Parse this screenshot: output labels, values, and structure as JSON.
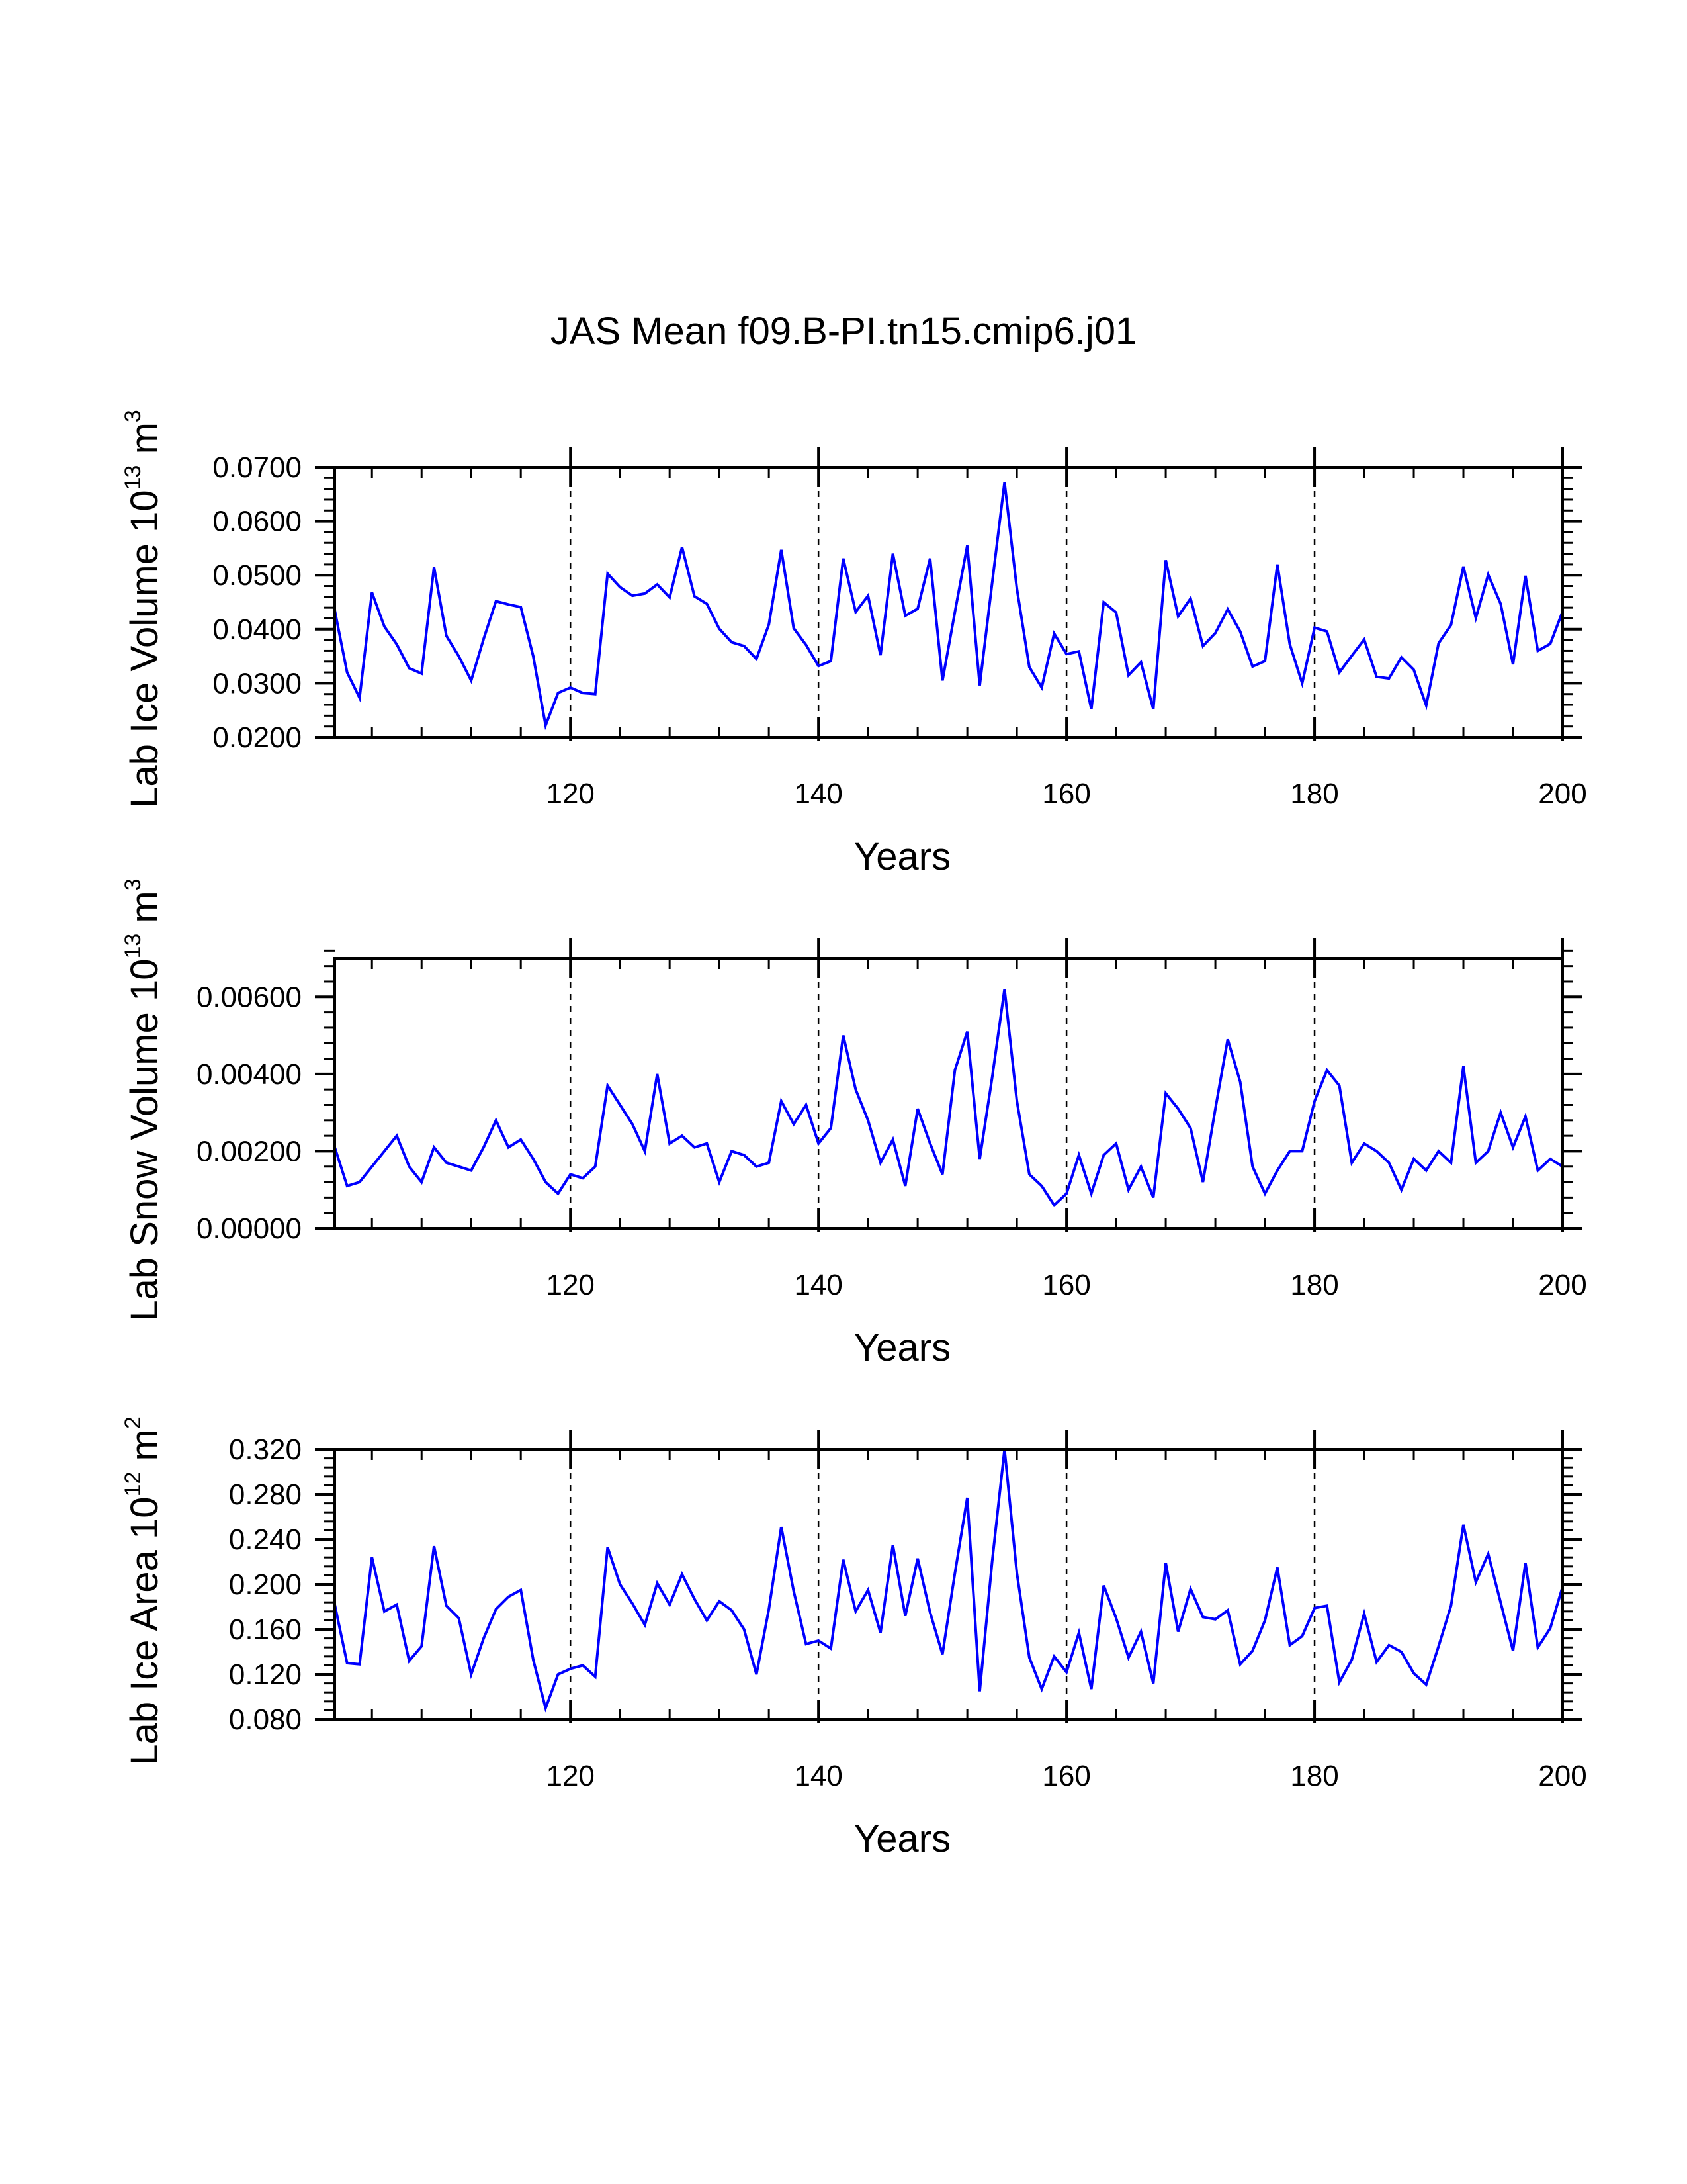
{
  "title": "JAS Mean f09.B-PI.tn15.cmip6.j01",
  "chart_data": [
    {
      "type": "line",
      "title": "",
      "xlabel": "Years",
      "ylabel": {
        "base": "Lab Ice Volume 10",
        "exp": "13",
        "unit": " m",
        "unit_exp": "3"
      },
      "xlim": [
        101,
        200
      ],
      "ylim": [
        0.02,
        0.07
      ],
      "x_ticks": [
        120,
        140,
        160,
        180,
        200
      ],
      "x_tick_labels": [
        "120",
        "140",
        "160",
        "180",
        "200"
      ],
      "y_ticks": [
        0.02,
        0.03,
        0.04,
        0.05,
        0.06,
        0.07
      ],
      "y_tick_labels": [
        "0.0200",
        "0.0300",
        "0.0400",
        "0.0500",
        "0.0600",
        "0.0700"
      ],
      "y_minor_step": 0.002,
      "x_minor_step": 4,
      "grid_x": [
        120,
        140,
        160,
        180
      ],
      "x_start": 101,
      "series": [
        {
          "name": "Lab Ice Volume",
          "color": "#0000ff",
          "values": [
            0.0435,
            0.032,
            0.0273,
            0.0468,
            0.0405,
            0.0372,
            0.0328,
            0.0318,
            0.0515,
            0.0388,
            0.035,
            0.0305,
            0.0382,
            0.0452,
            0.0446,
            0.0441,
            0.035,
            0.0222,
            0.0282,
            0.0292,
            0.0282,
            0.028,
            0.0503,
            0.0478,
            0.0462,
            0.0466,
            0.0483,
            0.0459,
            0.0552,
            0.0461,
            0.0447,
            0.0401,
            0.0376,
            0.0369,
            0.0345,
            0.0409,
            0.0547,
            0.0402,
            0.0371,
            0.0332,
            0.0341,
            0.0531,
            0.0432,
            0.0462,
            0.0352,
            0.054,
            0.0425,
            0.0438,
            0.0531,
            0.0305,
            0.0432,
            0.0555,
            0.0296,
            0.0485,
            0.0672,
            0.0475,
            0.033,
            0.0292,
            0.0392,
            0.0354,
            0.0359,
            0.0252,
            0.045,
            0.0431,
            0.0315,
            0.0339,
            0.0252,
            0.0528,
            0.0424,
            0.0457,
            0.0369,
            0.0393,
            0.0437,
            0.0396,
            0.0331,
            0.0341,
            0.052,
            0.0372,
            0.03,
            0.0403,
            0.0396,
            0.032,
            0.0351,
            0.0381,
            0.0312,
            0.0309,
            0.0348,
            0.0325,
            0.0259,
            0.0374,
            0.0408,
            0.0516,
            0.0421,
            0.0501,
            0.0447,
            0.0335,
            0.0499,
            0.036,
            0.0373,
            0.0433
          ]
        }
      ]
    },
    {
      "type": "line",
      "title": "",
      "xlabel": "Years",
      "ylabel": {
        "base": "Lab Snow Volume 10",
        "exp": "13",
        "unit": " m",
        "unit_exp": "3"
      },
      "xlim": [
        101,
        200
      ],
      "ylim": [
        0.0,
        0.007
      ],
      "x_ticks": [
        120,
        140,
        160,
        180,
        200
      ],
      "x_tick_labels": [
        "120",
        "140",
        "160",
        "180",
        "200"
      ],
      "y_ticks": [
        0.0,
        0.002,
        0.004,
        0.006
      ],
      "y_tick_labels": [
        "0.00000",
        "0.00200",
        "0.00400",
        "0.00600"
      ],
      "y_minor_step": 0.0004,
      "x_minor_step": 4,
      "grid_x": [
        120,
        140,
        160,
        180
      ],
      "x_start": 101,
      "series": [
        {
          "name": "Lab Snow Volume",
          "color": "#0000ff",
          "values": [
            0.0021,
            0.0011,
            0.0012,
            0.0016,
            0.002,
            0.0024,
            0.0016,
            0.0012,
            0.0021,
            0.0017,
            0.0016,
            0.0015,
            0.0021,
            0.0028,
            0.0021,
            0.0023,
            0.0018,
            0.0012,
            0.0009,
            0.0014,
            0.0013,
            0.0016,
            0.0037,
            0.0032,
            0.0027,
            0.002,
            0.004,
            0.0022,
            0.0024,
            0.0021,
            0.0022,
            0.0012,
            0.002,
            0.0019,
            0.0016,
            0.0017,
            0.0033,
            0.0027,
            0.0032,
            0.0022,
            0.0026,
            0.005,
            0.0036,
            0.0028,
            0.0017,
            0.0023,
            0.0011,
            0.0031,
            0.0022,
            0.0014,
            0.0041,
            0.0051,
            0.0018,
            0.0039,
            0.0062,
            0.0033,
            0.0014,
            0.0011,
            0.0006,
            0.0009,
            0.0019,
            0.0009,
            0.0019,
            0.0022,
            0.001,
            0.0016,
            0.0008,
            0.0035,
            0.0031,
            0.0026,
            0.0012,
            0.0031,
            0.0049,
            0.0038,
            0.0016,
            0.0009,
            0.0015,
            0.002,
            0.002,
            0.0033,
            0.0041,
            0.0037,
            0.0017,
            0.0022,
            0.002,
            0.0017,
            0.001,
            0.0018,
            0.0015,
            0.002,
            0.0017,
            0.0042,
            0.0017,
            0.002,
            0.003,
            0.0021,
            0.0029,
            0.0015,
            0.0018,
            0.0016
          ]
        }
      ]
    },
    {
      "type": "line",
      "title": "",
      "xlabel": "Years",
      "ylabel": {
        "base": "Lab Ice Area 10",
        "exp": "12",
        "unit": " m",
        "unit_exp": "2"
      },
      "xlim": [
        101,
        200
      ],
      "ylim": [
        0.08,
        0.32
      ],
      "x_ticks": [
        120,
        140,
        160,
        180,
        200
      ],
      "x_tick_labels": [
        "120",
        "140",
        "160",
        "180",
        "200"
      ],
      "y_ticks": [
        0.08,
        0.12,
        0.16,
        0.2,
        0.24,
        0.28,
        0.32
      ],
      "y_tick_labels": [
        "0.080",
        "0.120",
        "0.160",
        "0.200",
        "0.240",
        "0.280",
        "0.320"
      ],
      "y_minor_step": 0.008,
      "x_minor_step": 4,
      "grid_x": [
        120,
        140,
        160,
        180
      ],
      "x_start": 101,
      "series": [
        {
          "name": "Lab Ice Area",
          "color": "#0000ff",
          "values": [
            0.182,
            0.13,
            0.129,
            0.224,
            0.176,
            0.182,
            0.132,
            0.145,
            0.234,
            0.181,
            0.17,
            0.12,
            0.152,
            0.178,
            0.189,
            0.195,
            0.133,
            0.09,
            0.12,
            0.125,
            0.128,
            0.118,
            0.233,
            0.2,
            0.183,
            0.164,
            0.201,
            0.182,
            0.209,
            0.187,
            0.168,
            0.185,
            0.177,
            0.16,
            0.12,
            0.178,
            0.251,
            0.194,
            0.147,
            0.15,
            0.143,
            0.222,
            0.176,
            0.195,
            0.157,
            0.235,
            0.172,
            0.223,
            0.175,
            0.138,
            0.21,
            0.277,
            0.105,
            0.22,
            0.32,
            0.21,
            0.135,
            0.107,
            0.136,
            0.122,
            0.157,
            0.107,
            0.199,
            0.17,
            0.135,
            0.158,
            0.112,
            0.219,
            0.158,
            0.196,
            0.171,
            0.169,
            0.177,
            0.129,
            0.141,
            0.168,
            0.215,
            0.146,
            0.154,
            0.179,
            0.181,
            0.113,
            0.133,
            0.174,
            0.131,
            0.146,
            0.14,
            0.121,
            0.111,
            0.145,
            0.181,
            0.253,
            0.202,
            0.227,
            0.184,
            0.141,
            0.219,
            0.144,
            0.161,
            0.198
          ]
        }
      ]
    }
  ]
}
